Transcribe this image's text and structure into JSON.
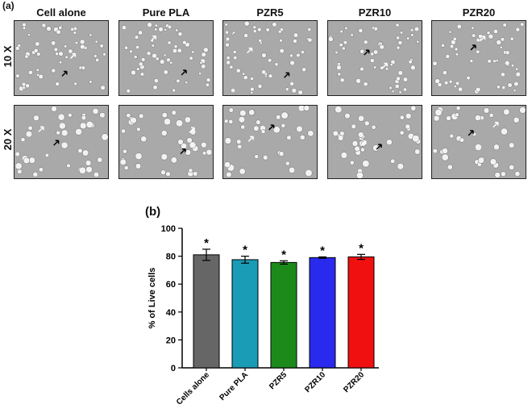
{
  "figure": {
    "panel_a_label": "(a)",
    "panel_b_label": "(b)",
    "columns": [
      "Cell alone",
      "Pure PLA",
      "PZR5",
      "PZR10",
      "PZR20"
    ],
    "rows": [
      "10 X",
      "20 X"
    ]
  },
  "colors": {
    "micrograph_bg": "#a9a9a9",
    "cell": "#f2f2f2",
    "arrow_black": "#000000",
    "arrow_white": "#ffffff"
  },
  "chart_data": {
    "type": "bar",
    "categories": [
      "Cells alone",
      "Pure PLA",
      "PZR5",
      "PZR10",
      "PZR20"
    ],
    "values": [
      81,
      77.5,
      75.5,
      79,
      79.5
    ],
    "errors": [
      4,
      2.5,
      1.2,
      0.5,
      1.8
    ],
    "annotations": [
      "*",
      "*",
      "*",
      "*",
      "*"
    ],
    "colors": [
      "#666666",
      "#1a9bb6",
      "#1b8a1b",
      "#2a2aee",
      "#f01010"
    ],
    "ylabel": "% of Live cells",
    "xlabel": "",
    "title": "",
    "ylim": [
      0,
      100
    ],
    "yticks": [
      0,
      20,
      40,
      60,
      80,
      100
    ],
    "grid": false
  }
}
